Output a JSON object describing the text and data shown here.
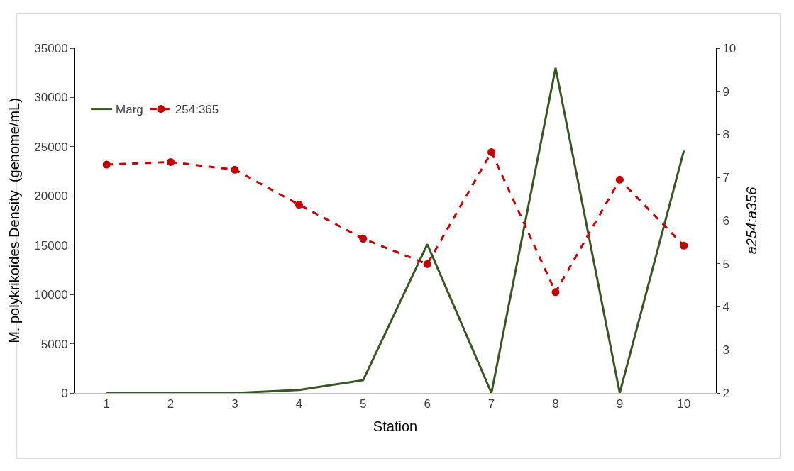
{
  "chart_data": {
    "type": "line",
    "xlabel": "Station",
    "ylabel": "M. polykrikoides Density  (genome/mL)",
    "y2label": "a254:a356",
    "categories": [
      "1",
      "2",
      "3",
      "4",
      "5",
      "6",
      "7",
      "8",
      "9",
      "10"
    ],
    "series": [
      {
        "name": "Marg",
        "color": "#375623",
        "marker": "none",
        "line_style": "solid",
        "values": [
          0,
          0,
          0,
          300,
          1300,
          15100,
          0,
          33000,
          0,
          24600
        ]
      },
      {
        "name": "254:365",
        "color": "#c00000",
        "marker": "circle",
        "line_style": "dashed",
        "axis": "y2",
        "values": [
          7.3,
          7.36,
          7.18,
          6.37,
          5.58,
          4.99,
          7.59,
          4.34,
          6.95,
          5.42
        ]
      }
    ],
    "ylim": [
      0,
      35000
    ],
    "yticks": [
      0,
      5000,
      10000,
      15000,
      20000,
      25000,
      30000,
      35000
    ],
    "y2lim": [
      2,
      10
    ],
    "y2ticks": [
      2,
      3,
      4,
      5,
      6,
      7,
      8,
      9,
      10
    ],
    "legend": "top left"
  }
}
